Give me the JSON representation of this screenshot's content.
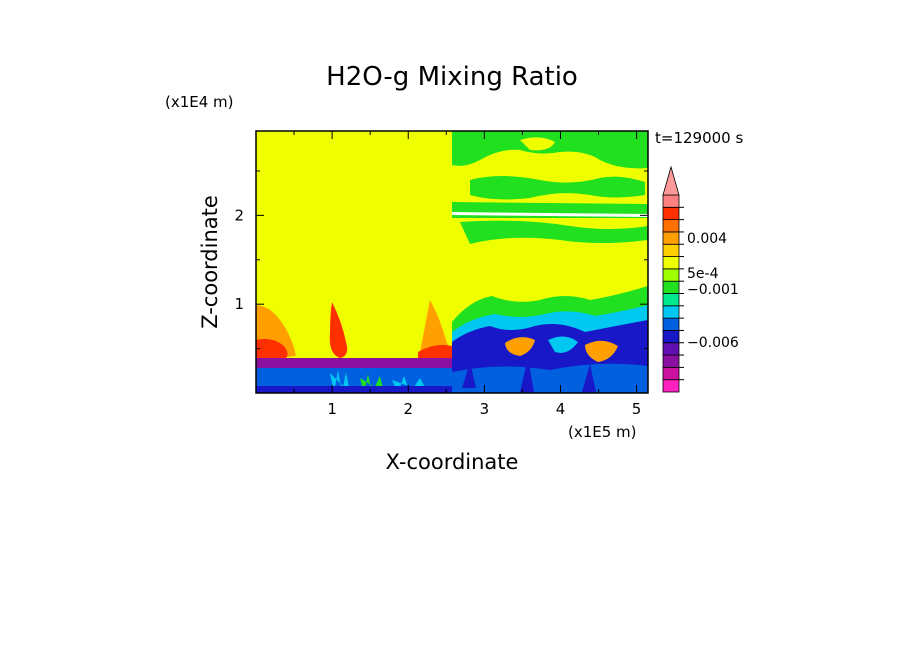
{
  "chart_data": {
    "type": "heatmap",
    "title": "H2O-g Mixing Ratio",
    "time_label": "t=129000 s",
    "xlabel": "X-coordinate",
    "ylabel": "Z-coordinate",
    "x_unit": "(x1E5 m)",
    "y_unit": "(x1E4 m)",
    "xlim": [
      0,
      5.15
    ],
    "ylim": [
      0,
      2.95
    ],
    "xticks": [
      1,
      2,
      3,
      4,
      5
    ],
    "yticks": [
      1,
      2
    ],
    "colorbar": {
      "colors": [
        "#ff20c0",
        "#cc10a0",
        "#8c10a0",
        "#6010b0",
        "#1818c8",
        "#0060e0",
        "#00c8f0",
        "#00e890",
        "#20e020",
        "#a0ff00",
        "#f0ff00",
        "#ffd000",
        "#ffa000",
        "#ff7000",
        "#ff3000",
        "#ff8080"
      ],
      "extend_top_color": "#ff9a9a",
      "labels": [
        {
          "text": "0.004",
          "value": 0.004
        },
        {
          "text": "5e-4",
          "value": 0.0005
        },
        {
          "text": "−0.001",
          "value": -0.001
        },
        {
          "text": "−0.006",
          "value": -0.006
        }
      ]
    }
  }
}
